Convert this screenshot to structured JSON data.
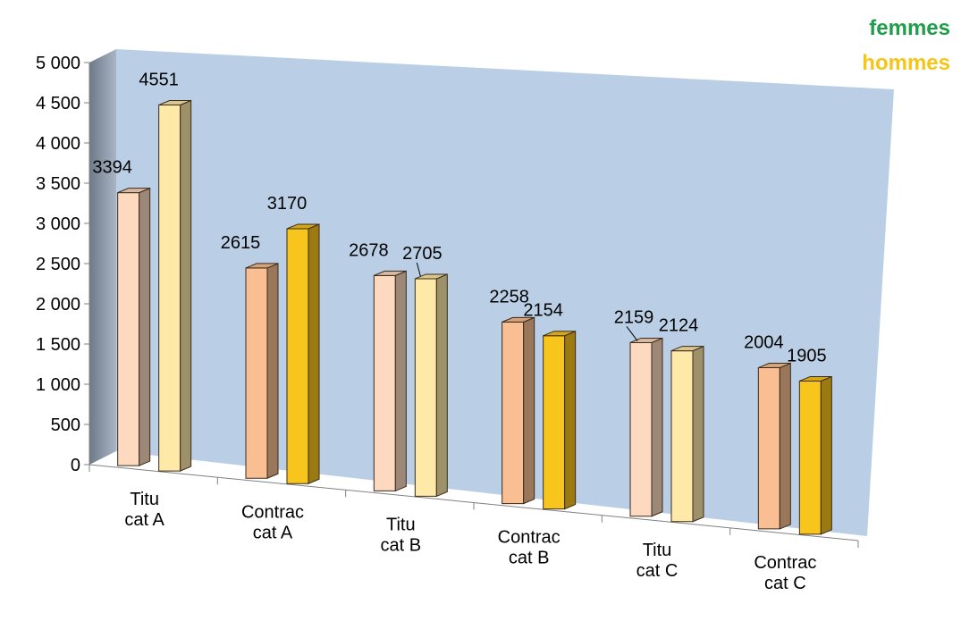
{
  "chart_data": {
    "type": "bar",
    "title": "",
    "xlabel": "",
    "ylabel": "",
    "ylim": [
      0,
      5000
    ],
    "y_ticks": [
      "0",
      "500",
      "1 000",
      "1 500",
      "2 000",
      "2 500",
      "3 000",
      "3 500",
      "4 000",
      "4 500",
      "5 000"
    ],
    "y_tick_values": [
      0,
      500,
      1000,
      1500,
      2000,
      2500,
      3000,
      3500,
      4000,
      4500,
      5000
    ],
    "categories": [
      [
        "Titu",
        "cat A"
      ],
      [
        "Contrac",
        "cat A"
      ],
      [
        "Titu",
        "cat B"
      ],
      [
        "Contrac",
        "cat B"
      ],
      [
        "Titu",
        "cat C"
      ],
      [
        "Contrac",
        "cat C"
      ]
    ],
    "series": [
      {
        "name": "femmes",
        "values": [
          3394,
          2615,
          2678,
          2258,
          2159,
          2004
        ],
        "labels": [
          "3394",
          "2615",
          "2678",
          "2258",
          "2159",
          "2004"
        ]
      },
      {
        "name": "hommes",
        "values": [
          4551,
          3170,
          2705,
          2154,
          2124,
          1905
        ],
        "labels": [
          "4551",
          "3170",
          "2705",
          "2154",
          "2124",
          "1905"
        ]
      }
    ],
    "legend_placement": "top-right",
    "grid": false,
    "three_d": true,
    "colors": {
      "femmes_titu": "#FDD9BF",
      "femmes_contrac": "#F9BF93",
      "hommes_titu": "#FFE9A8",
      "hommes_contrac": "#F8C51C",
      "wall": "#BACFE6",
      "side_wall": "#7F8A99",
      "legend_femmes": "#1E9E4A",
      "legend_hommes": "#F5C518"
    }
  }
}
